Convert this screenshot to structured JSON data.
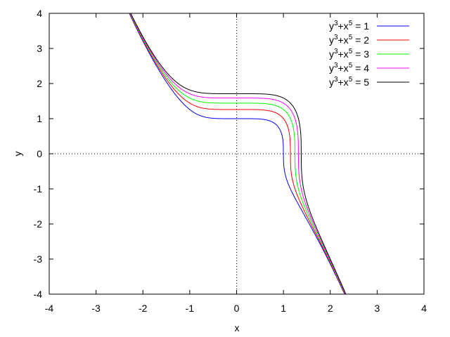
{
  "chart_data": {
    "type": "line",
    "title": "",
    "xlabel": "x",
    "ylabel": "y",
    "xlim": [
      -4,
      4
    ],
    "ylim": [
      -4,
      4
    ],
    "xticks": [
      "-4",
      "-3",
      "-2",
      "-1",
      "0",
      "1",
      "2",
      "3",
      "4"
    ],
    "yticks": [
      "-4",
      "-3",
      "-2",
      "-1",
      "0",
      "1",
      "2",
      "3",
      "4"
    ],
    "zero_axes": "dotted",
    "grid": false,
    "legend_position": "top-right",
    "series": [
      {
        "name": "y3+x5 = 1",
        "base": "y",
        "sup1": "3",
        "mid": "+x",
        "sup2": "5",
        "rhs": " = 1",
        "c": 1,
        "color": "#0000ff"
      },
      {
        "name": "y3+x5 = 2",
        "base": "y",
        "sup1": "3",
        "mid": "+x",
        "sup2": "5",
        "rhs": " = 2",
        "c": 2,
        "color": "#ff0000"
      },
      {
        "name": "y3+x5 = 3",
        "base": "y",
        "sup1": "3",
        "mid": "+x",
        "sup2": "5",
        "rhs": " = 3",
        "c": 3,
        "color": "#00ff00"
      },
      {
        "name": "y3+x5 = 4",
        "base": "y",
        "sup1": "3",
        "mid": "+x",
        "sup2": "5",
        "rhs": " = 4",
        "c": 4,
        "color": "#ff00ff"
      },
      {
        "name": "y3+x5 = 5",
        "base": "y",
        "sup1": "3",
        "mid": "+x",
        "sup2": "5",
        "rhs": " = 5",
        "c": 5,
        "color": "#000000"
      }
    ]
  }
}
